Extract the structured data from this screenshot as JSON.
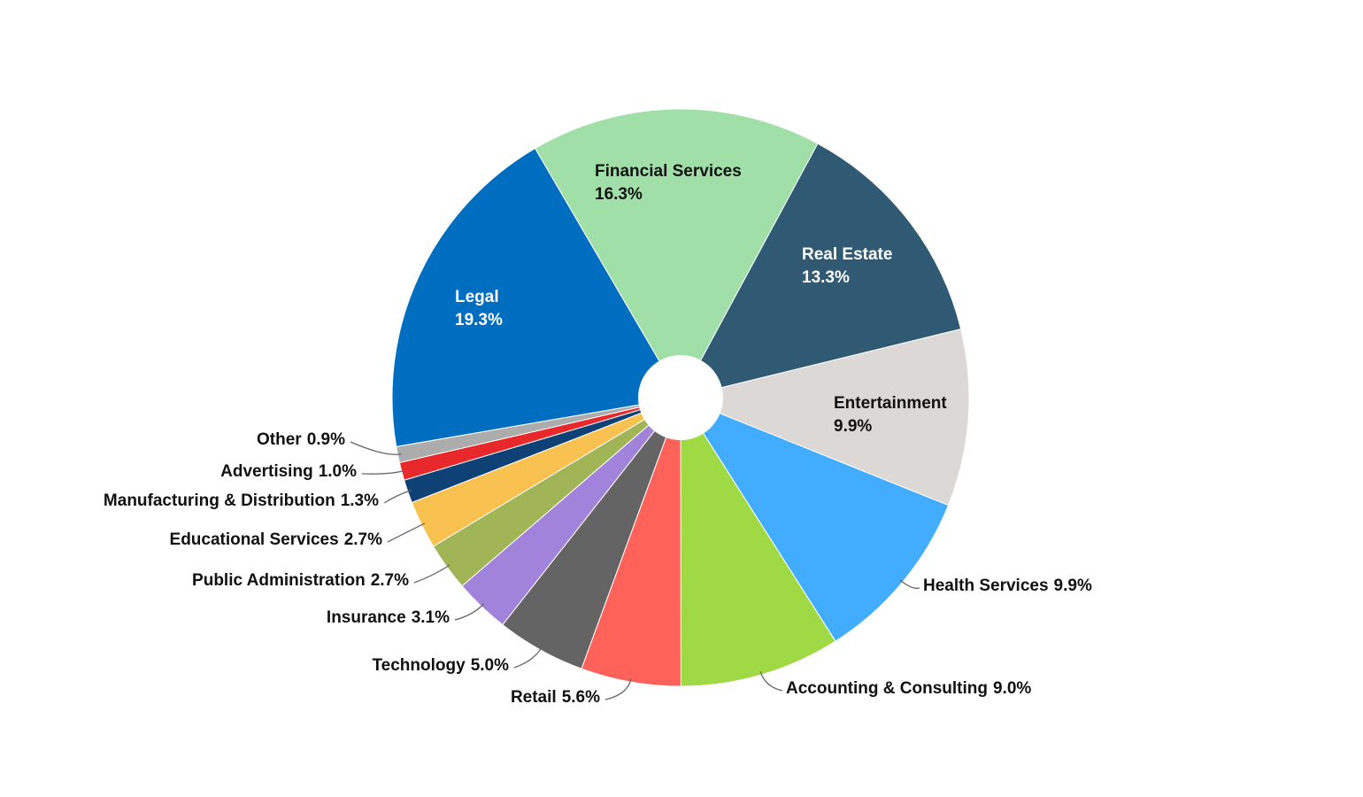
{
  "chart_data": {
    "type": "pie",
    "categories": [
      "Financial Services",
      "Real Estate",
      "Entertainment",
      "Health Services",
      "Accounting & Consulting",
      "Retail",
      "Technology",
      "Insurance",
      "Public Administration",
      "Educational Services",
      "Manufacturing & Distribution",
      "Advertising",
      "Other",
      "Legal"
    ],
    "values": [
      16.3,
      13.3,
      9.9,
      9.9,
      9.0,
      5.6,
      5.0,
      3.1,
      2.7,
      2.7,
      1.3,
      1.0,
      0.9,
      19.3
    ],
    "value_labels": [
      "16.3%",
      "13.3%",
      "9.9%",
      "9.9%",
      "9.0%",
      "5.6%",
      "5.0%",
      "3.1%",
      "2.7%",
      "2.7%",
      "1.3%",
      "1.0%",
      "0.9%",
      "19.3%"
    ],
    "colors": [
      "#a0e0a8",
      "#305a73",
      "#dcd8d6",
      "#42adff",
      "#9fda45",
      "#ff6258",
      "#646464",
      "#a283dc",
      "#a2b556",
      "#f8c150",
      "#0e4276",
      "#e8282a",
      "#acacac",
      "#006ec0"
    ]
  }
}
